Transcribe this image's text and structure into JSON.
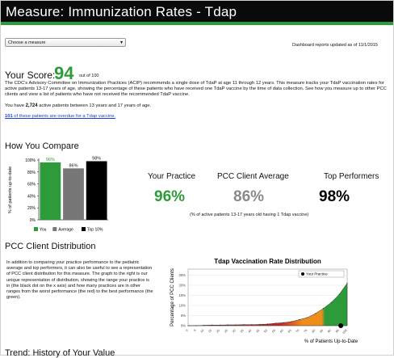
{
  "header": {
    "title": "Measure: Immunization Rates - Tdap"
  },
  "measure_select": {
    "value": "Choose a measure",
    "arrow": "▾"
  },
  "updated_text": "Dashboard reports updated as of 11/1/2015",
  "score": {
    "label": "Your Score:",
    "value": "94",
    "out_of": "out of 100"
  },
  "description": "The CDC's Advisory Committee on Immunization Practices (ACIP) recommends a single dose of TdaP at age 11 through 12 years. This measure tracks your TdaP vaccination rates for active patients 13-17 years of age, showing the percentage of these patients who have received one TdaP vaccine by the time of data collection. See how you measure up to other PCC clients and view a list of patients who have not received the recommended TdaP vaccine.",
  "active_patients": {
    "prefix": "You have",
    "count": "2,724",
    "suffix": "active patients between 13 years and 17 years of age."
  },
  "overdue_link": {
    "count": "101",
    "text": "of these patients are overdue for a Tdap vaccine."
  },
  "how_you_compare": {
    "heading": "How You Compare",
    "stats": [
      {
        "label": "Your Practice",
        "value": "96%",
        "color": "#2e9b3a"
      },
      {
        "label": "PCC Client Average",
        "value": "86%",
        "color": "#8a8a8a"
      },
      {
        "label": "Top Performers",
        "value": "98%",
        "color": "#000000"
      }
    ],
    "note": "(% of active patients 13-17 years old having 1 Tdap vaccine)"
  },
  "distribution": {
    "heading": "PCC Client Distribution",
    "text": "In addition to comparing your practice performance to the pediatric average and top performers, it can also be useful to see a representation of PCC client distribution for this measure. The graph to the right is our unique representation of distribution, showing the range your practice is in (the black dot on the x axis) and how many practices are in other ranges from the worst performance (the red) to the best performance (the green)."
  },
  "next_heading": "Trend: History of Your Value",
  "chart_data": [
    {
      "type": "bar",
      "categories": [
        "You",
        "Average",
        "Top 10%"
      ],
      "values": [
        96,
        86,
        98
      ],
      "value_labels": [
        "96%",
        "86%",
        "98%"
      ],
      "colors": [
        "#2e9b3a",
        "#777777",
        "#000000"
      ],
      "ylabel": "% of patients up-to-date",
      "yticks": [
        "0%",
        "20%",
        "40%",
        "60%",
        "80%",
        "100%"
      ],
      "ylim": [
        0,
        100
      ],
      "legend": [
        "You",
        "Average",
        "Top 10%"
      ],
      "legend_position": "bottom"
    },
    {
      "type": "area",
      "title": "Tdap Vaccination Rate Distribution",
      "xlabel": "% of Patients Up-to-Date",
      "ylabel": "Percentage of PCC Clients",
      "x": [
        0,
        5,
        10,
        15,
        20,
        25,
        30,
        35,
        40,
        45,
        50,
        55,
        60,
        65,
        70,
        75,
        80,
        85,
        90,
        95,
        100
      ],
      "xtick_labels": [
        "0",
        "5",
        "10",
        "15",
        "20",
        "25",
        "30",
        "35",
        "40",
        "45",
        "50",
        "55",
        "60",
        "65",
        "70",
        "75",
        "80",
        "85",
        "90",
        "95",
        "100"
      ],
      "y": [
        0,
        0,
        0.2,
        0.3,
        0.3,
        0.4,
        0.4,
        0.5,
        0.5,
        0.6,
        0.8,
        1.2,
        1.5,
        2.0,
        3.0,
        4.0,
        6.0,
        8.5,
        11.5,
        15.5,
        21
      ],
      "ylim": [
        0,
        28
      ],
      "yticks": [
        "0%",
        "5%",
        "10%",
        "15%",
        "20%",
        "25%"
      ],
      "your_practice_x": 96,
      "legend": [
        "Your Practice"
      ],
      "legend_position": "top-right",
      "gradient": [
        "#c62828",
        "#f08c1a",
        "#2e9b3a"
      ]
    }
  ]
}
